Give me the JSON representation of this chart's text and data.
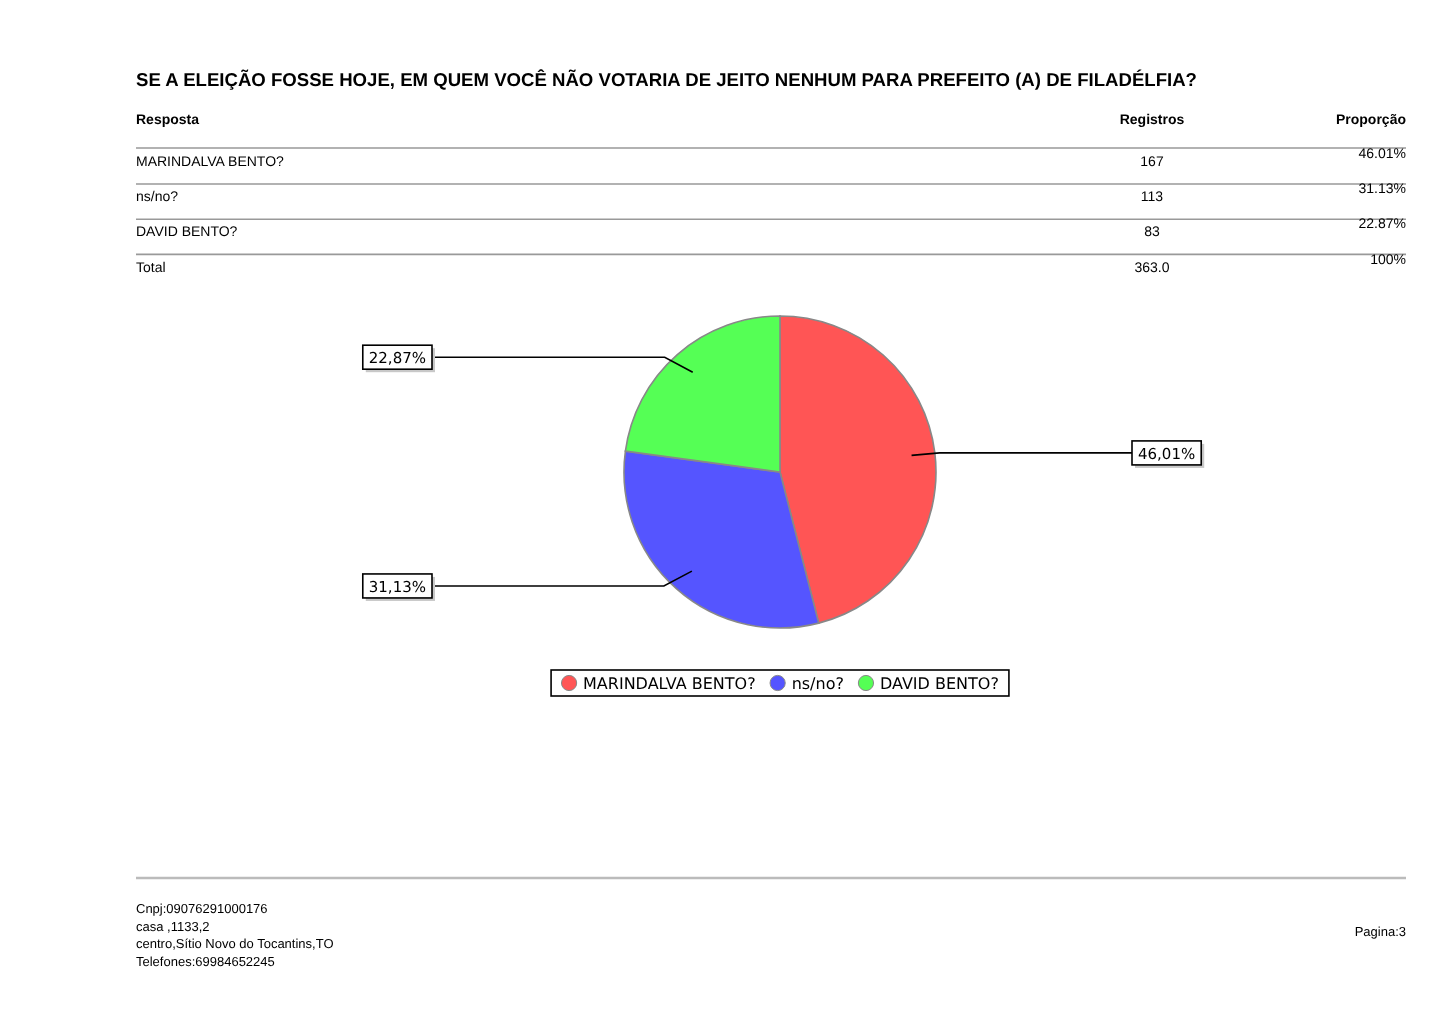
{
  "chart_data": {
    "type": "pie",
    "title": "SE A ELEIÇÃO FOSSE HOJE, EM QUEM VOCÊ NÃO VOTARIA DE JEITO NENHUM PARA PREFEITO (A) DE FILADÉLFIA?",
    "categories": [
      "MARINDALVA BENTO?",
      "ns/no?",
      "DAVID BENTO?"
    ],
    "values": [
      46.01,
      31.13,
      22.87
    ],
    "colors": [
      "#ff5555",
      "#5555ff",
      "#55ff55"
    ],
    "value_labels": [
      "46,01%",
      "31,13%",
      "22,87%"
    ],
    "legend": "bottom",
    "annotations": [
      "Resposta",
      "Registros",
      "Proporção",
      "167",
      "46.01%",
      "113",
      "31.13%",
      "83",
      "22.87%",
      "Total",
      "363.0",
      "100%",
      "Cnpj:09076291000176",
      "casa ,1133,2",
      "centro,Sítio Novo do Tocantins,TO",
      "Telefones:69984652245",
      "Pagina:3"
    ]
  }
}
